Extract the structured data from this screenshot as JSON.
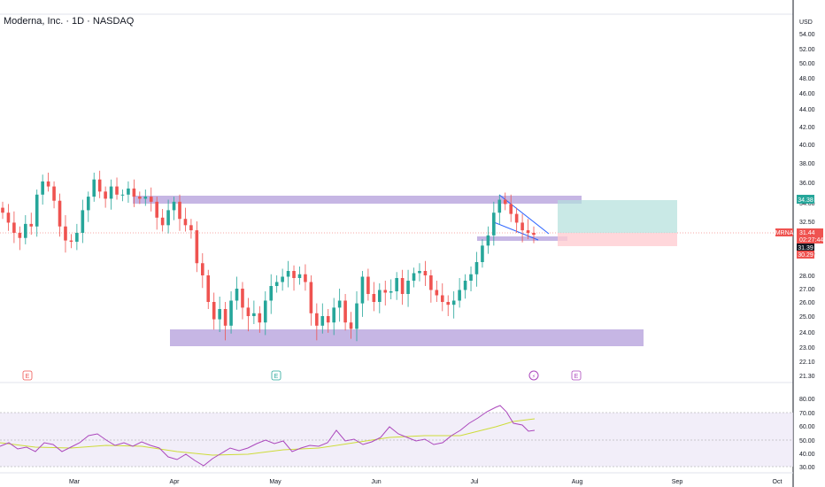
{
  "header": {
    "title": "Moderna, Inc. · 1D · NASDAQ"
  },
  "price_axis": {
    "currency": "USD",
    "ticks": [
      "54.00",
      "52.00",
      "50.00",
      "48.00",
      "46.00",
      "44.00",
      "42.00",
      "40.00",
      "38.00",
      "36.00",
      "34.00",
      "32.50",
      "30.00",
      "28.00",
      "27.00",
      "26.00",
      "25.00",
      "24.00",
      "23.00",
      "22.10",
      "21.30"
    ]
  },
  "rsi_axis": {
    "ticks": [
      "80.00",
      "70.00",
      "60.00",
      "50.00",
      "40.00",
      "30.00"
    ]
  },
  "time_axis": {
    "labels": [
      "Mar",
      "Apr",
      "May",
      "Jun",
      "Jul",
      "Aug",
      "Sep",
      "Oct"
    ]
  },
  "price_tags": {
    "target": "34.38",
    "symbol": "MRNA",
    "last": "31.44",
    "countdown": "02:27:44",
    "entry": "31.39",
    "stop": "30.29"
  },
  "earnings_markers": [
    "E",
    "E",
    "E"
  ],
  "dividend_marker": "⚡",
  "colors": {
    "up": "#26a69a",
    "down": "#ef5350",
    "zone": "#b39ddb",
    "profit": "#b2dfdb",
    "loss": "#ffcdd2",
    "rsi": "#ab47bc",
    "rsi_ma": "#cddc39",
    "pattern": "#2962ff"
  },
  "chart_data": {
    "type": "candlestick",
    "symbol": "MRNA",
    "interval": "1D",
    "exchange": "NASDAQ",
    "currency": "USD",
    "last_price": 31.44,
    "support_zone": [
      23.6,
      24.4
    ],
    "resistance_zone": [
      34.2,
      34.9
    ],
    "trade": {
      "entry": 31.39,
      "target": 34.38,
      "stop": 30.29
    },
    "close_path": [
      {
        "month": "Feb",
        "values": [
          33.2,
          32.4,
          31.6,
          31.2,
          32.3,
          32.1,
          34.8,
          36.1,
          35.6,
          34.2,
          32.1,
          31.0,
          30.9,
          31.6,
          33.4,
          34.6,
          36.3,
          35.1,
          34.4,
          35.6,
          34.8
        ]
      },
      {
        "month": "Mar",
        "values": [
          34.8,
          35.4,
          34.6,
          34.4,
          34.6,
          34.1,
          32.8,
          32.2,
          33.4,
          34.1,
          32.7,
          32.2,
          31.8
        ]
      },
      {
        "month": "Apr",
        "values": [
          29.1,
          28.0,
          26.0,
          24.8,
          25.5,
          24.4,
          26.1,
          27.0,
          25.6,
          25.0,
          25.2,
          24.6,
          26.1,
          27.2,
          27.5,
          27.9,
          28.4,
          27.8,
          28.1
        ]
      },
      {
        "month": "May",
        "values": [
          27.5,
          25.2,
          24.4,
          25.0,
          24.6,
          25.6,
          26.1,
          24.6,
          24.2,
          25.9,
          27.9,
          26.6,
          26.0,
          26.9,
          26.7,
          26.8,
          27.8,
          26.6,
          27.6,
          28.2,
          28.4,
          28.0
        ]
      },
      {
        "month": "Jun",
        "values": [
          26.9,
          26.5,
          26.0,
          25.8,
          26.1,
          26.9,
          27.6,
          28.1,
          29.2,
          30.6,
          31.4
        ]
      },
      {
        "month": "Jul",
        "values": [
          33.2,
          34.3,
          33.9,
          33.1,
          32.4,
          31.8,
          31.6,
          31.44
        ]
      }
    ],
    "rsi": {
      "levels": [
        70,
        50,
        30
      ],
      "approx_values": [
        48,
        44,
        42,
        47,
        46,
        43,
        44,
        49,
        52,
        56,
        50,
        48,
        52,
        46,
        42,
        38,
        34,
        32,
        36,
        40,
        44,
        42,
        46,
        50,
        54,
        52,
        48,
        56,
        62,
        66,
        70,
        76,
        72,
        62,
        58
      ]
    }
  }
}
